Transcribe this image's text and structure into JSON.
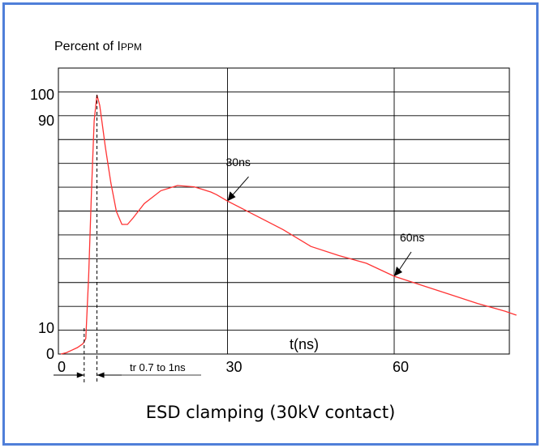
{
  "caption": "ESD clamping (30kV contact)",
  "chart_data": {
    "type": "line",
    "title_main": "Percent of I",
    "title_sub": "PPM",
    "xlabel": "t(ns)",
    "ylabel": "",
    "y_tick_labels": [
      {
        "value": 100,
        "label": "100"
      },
      {
        "value": 90,
        "label": "90"
      },
      {
        "value": 10,
        "label": "10"
      },
      {
        "value": 0,
        "label": "0"
      }
    ],
    "x_tick_labels": [
      {
        "value": 0,
        "label": "0"
      },
      {
        "value": 30,
        "label": "30"
      },
      {
        "value": 60,
        "label": "60"
      }
    ],
    "xlim": [
      0,
      82
    ],
    "ylim": [
      0,
      100
    ],
    "grid": true,
    "series": [
      {
        "color": "#ff3333",
        "x": [
          0,
          1,
          2,
          3,
          4,
          4.5,
          5,
          5.5,
          6,
          6.5,
          7,
          7.5,
          8,
          9,
          10,
          11,
          12,
          13,
          15,
          18,
          21,
          24,
          27,
          28,
          30,
          35,
          40,
          45,
          50,
          55,
          60,
          65,
          70,
          75,
          80,
          82
        ],
        "y": [
          0,
          0.5,
          1.5,
          2.5,
          4,
          6,
          30,
          62,
          90,
          100,
          96,
          88,
          80,
          66,
          55,
          50,
          50,
          52.5,
          58,
          63,
          65,
          64.5,
          62.5,
          61.5,
          59,
          53.5,
          48,
          41.5,
          38,
          35,
          30,
          26.5,
          23,
          19.5,
          16.5,
          15
        ]
      }
    ],
    "annotations": [
      {
        "text": "30ns",
        "x": 30,
        "y": 59
      },
      {
        "text": "60ns",
        "x": 60,
        "y": 30
      }
    ],
    "rise_time_label": "tr 0.7 to 1ns"
  }
}
